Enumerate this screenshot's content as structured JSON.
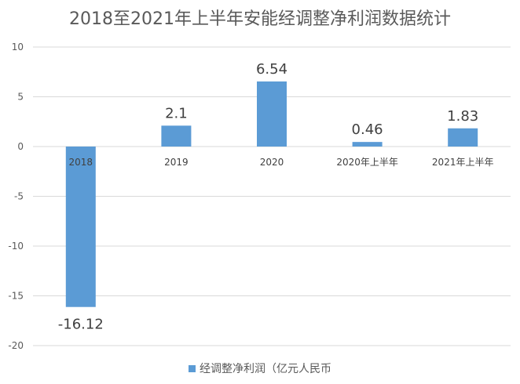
{
  "chart_data": {
    "type": "bar",
    "title": "2018至2021年上半年安能经调整净利润数据统计",
    "categories": [
      "2018",
      "2019",
      "2020",
      "2020年上半年",
      "2021年上半年"
    ],
    "series": [
      {
        "name": "经调整净利润（亿元人民币",
        "values": [
          -16.12,
          2.1,
          6.54,
          0.46,
          1.83
        ],
        "data_labels": [
          "-16.12",
          "2.1",
          "6.54",
          "0.46",
          "1.83"
        ],
        "color": "#5b9bd5"
      }
    ],
    "ylim": [
      -20,
      10
    ],
    "yticks": [
      10,
      5,
      0,
      -5,
      -10,
      -15,
      -20
    ],
    "grid": true,
    "legend_position": "bottom"
  }
}
